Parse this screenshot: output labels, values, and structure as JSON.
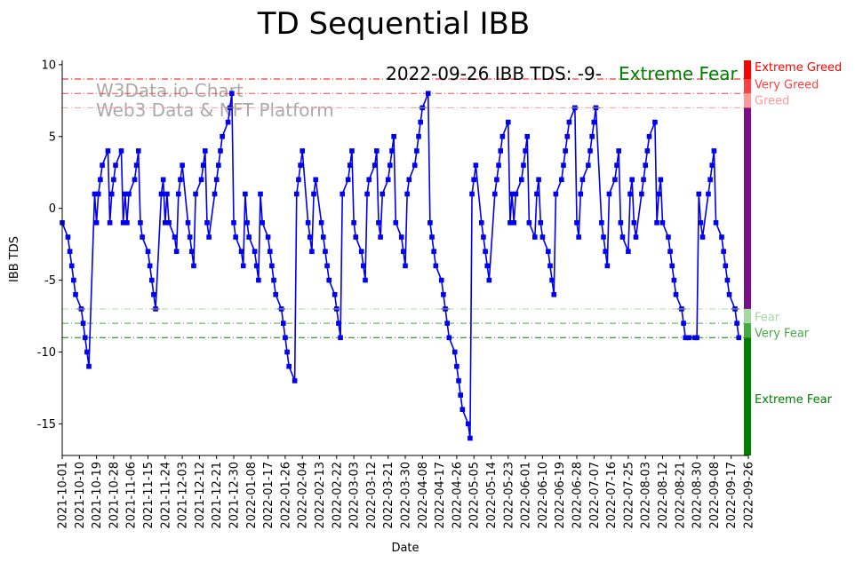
{
  "chart_data": {
    "type": "line",
    "title": "TD Sequential IBB",
    "annotation": "2022-09-26 IBB TDS: -9-",
    "annotation_status": "Extreme Fear",
    "xlabel": "Date",
    "ylabel": "IBB TDS",
    "ylim": [
      -17.2,
      10.3
    ],
    "yticks": [
      10,
      5,
      0,
      -5,
      -10,
      -15
    ],
    "start_date": "2021-10-01",
    "end_date": "2022-09-26",
    "xtick_labels": [
      "2021-10-01",
      "2021-10-10",
      "2021-10-19",
      "2021-10-28",
      "2021-11-06",
      "2021-11-15",
      "2021-11-24",
      "2021-12-03",
      "2021-12-12",
      "2021-12-21",
      "2021-12-30",
      "2022-01-08",
      "2022-01-17",
      "2022-01-26",
      "2022-02-04",
      "2022-02-13",
      "2022-02-22",
      "2022-03-03",
      "2022-03-12",
      "2022-03-21",
      "2022-03-30",
      "2022-04-08",
      "2022-04-17",
      "2022-04-26",
      "2022-05-05",
      "2022-05-14",
      "2022-05-23",
      "2022-06-01",
      "2022-06-10",
      "2022-06-19",
      "2022-06-28",
      "2022-07-07",
      "2022-07-16",
      "2022-07-25",
      "2022-08-03",
      "2022-08-12",
      "2022-08-21",
      "2022-08-30",
      "2022-09-08",
      "2022-09-17",
      "2022-09-26"
    ],
    "watermark": [
      "W3Data.io Chart",
      "Web3 Data & NFT Platform"
    ],
    "thresholds": [
      {
        "label": "Extreme Greed",
        "value": 9,
        "color": "#ff0000"
      },
      {
        "label": "Very Greed",
        "value": 8,
        "color": "#ff4040"
      },
      {
        "label": "Greed",
        "value": 7,
        "color": "#ff9999"
      },
      {
        "label": "Fear",
        "value": -7,
        "color": "#a3d9a3"
      },
      {
        "label": "Very Fear",
        "value": -8,
        "color": "#44aa44"
      },
      {
        "label": "Extreme Fear",
        "value": -9,
        "color": "#008000"
      }
    ],
    "series": [
      {
        "name": "IBB TDS",
        "color": "#0000ee",
        "values": [
          -1,
          -2,
          -3,
          -4,
          -5,
          -6,
          -7,
          -8,
          -9,
          -10,
          -11,
          1,
          -1,
          1,
          2,
          3,
          4,
          -1,
          1,
          2,
          3,
          4,
          -1,
          1,
          -1,
          1,
          2,
          3,
          4,
          -1,
          -2,
          -3,
          -4,
          -5,
          -6,
          -7,
          1,
          2,
          -1,
          1,
          -1,
          -2,
          -3,
          1,
          2,
          3,
          -1,
          -2,
          -3,
          -4,
          1,
          2,
          3,
          4,
          -1,
          -2,
          1,
          2,
          3,
          4,
          5,
          6,
          7,
          8,
          -1,
          -2,
          -3,
          -4,
          1,
          -1,
          -2,
          -3,
          -4,
          -5,
          1,
          -1,
          -2,
          -3,
          -4,
          -5,
          -6,
          -7,
          -8,
          -9,
          -10,
          -11,
          -12,
          1,
          2,
          3,
          4,
          -1,
          -2,
          -3,
          1,
          2,
          -1,
          -2,
          -3,
          -4,
          -5,
          -6,
          -7,
          -8,
          -9,
          1,
          2,
          3,
          4,
          -1,
          -2,
          -3,
          -4,
          -5,
          1,
          2,
          3,
          4,
          -1,
          -2,
          1,
          2,
          3,
          4,
          5,
          -1,
          -2,
          -3,
          -4,
          1,
          2,
          3,
          4,
          5,
          6,
          7,
          8,
          -1,
          -2,
          -3,
          -4,
          -5,
          -6,
          -7,
          -8,
          -9,
          -10,
          -11,
          -12,
          -13,
          -14,
          -15,
          -16,
          1,
          2,
          3,
          -1,
          -2,
          -3,
          -4,
          -5,
          1,
          2,
          3,
          4,
          5,
          6,
          -1,
          1,
          -1,
          1,
          2,
          3,
          4,
          5,
          -1,
          -2,
          1,
          2,
          -1,
          -2,
          -3,
          -4,
          -5,
          -6,
          1,
          2,
          3,
          4,
          5,
          6,
          7,
          -1,
          -2,
          1,
          2,
          3,
          4,
          5,
          6,
          7,
          -1,
          -2,
          -3,
          -4,
          1,
          2,
          3,
          4,
          -1,
          -2,
          -3,
          1,
          2,
          -1,
          -2,
          1,
          2,
          3,
          4,
          5,
          6,
          -1,
          1,
          2,
          -1,
          -2,
          -3,
          -4,
          -5,
          -6,
          -7,
          -8,
          -9,
          -9,
          -9,
          -9,
          -9,
          1,
          -1,
          -2,
          1,
          2,
          3,
          4,
          -1,
          -2,
          -3,
          -4,
          -5,
          -6,
          -7,
          -8,
          -9
        ]
      }
    ]
  }
}
